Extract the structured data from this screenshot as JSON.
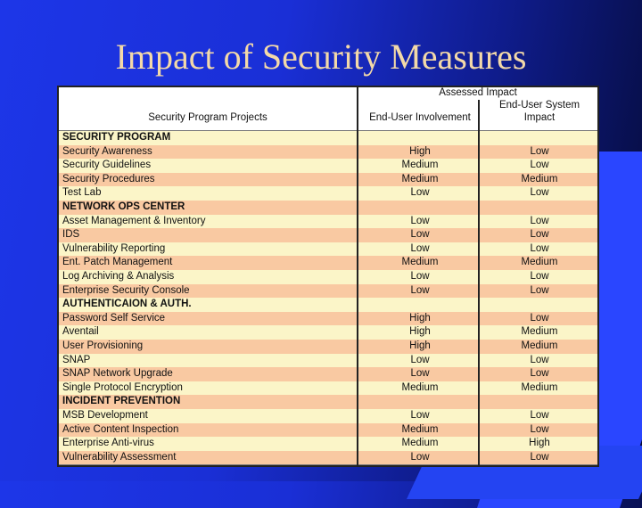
{
  "title": "Impact of Security Measures",
  "table": {
    "headers": {
      "project": "Security Program Projects",
      "assessed": "Assessed Impact",
      "involvement": "End-User Involvement",
      "system_line1": "End-User System",
      "system_line2": "Impact"
    },
    "rows": [
      {
        "project": "SECURITY PROGRAM",
        "involvement": "",
        "system": "",
        "section": true
      },
      {
        "project": "Security Awareness",
        "involvement": "High",
        "system": "Low"
      },
      {
        "project": "Security Guidelines",
        "involvement": "Medium",
        "system": "Low"
      },
      {
        "project": "Security Procedures",
        "involvement": "Medium",
        "system": "Medium"
      },
      {
        "project": "Test Lab",
        "involvement": "Low",
        "system": "Low"
      },
      {
        "project": "NETWORK OPS CENTER",
        "involvement": "",
        "system": "",
        "section": true
      },
      {
        "project": "Asset Management & Inventory",
        "involvement": "Low",
        "system": "Low"
      },
      {
        "project": "IDS",
        "involvement": "Low",
        "system": "Low"
      },
      {
        "project": "Vulnerability Reporting",
        "involvement": "Low",
        "system": "Low"
      },
      {
        "project": "Ent. Patch Management",
        "involvement": "Medium",
        "system": "Medium"
      },
      {
        "project": "Log Archiving & Analysis",
        "involvement": "Low",
        "system": "Low"
      },
      {
        "project": "Enterprise Security Console",
        "involvement": "Low",
        "system": "Low"
      },
      {
        "project": "AUTHENTICAION & AUTH.",
        "involvement": "",
        "system": "",
        "section": true
      },
      {
        "project": "Password Self Service",
        "involvement": "High",
        "system": "Low"
      },
      {
        "project": "Aventail",
        "involvement": "High",
        "system": "Medium"
      },
      {
        "project": "User Provisioning",
        "involvement": "High",
        "system": "Medium"
      },
      {
        "project": "SNAP",
        "involvement": "Low",
        "system": "Low"
      },
      {
        "project": "SNAP Network Upgrade",
        "involvement": "Low",
        "system": "Low"
      },
      {
        "project": "Single Protocol Encryption",
        "involvement": "Medium",
        "system": "Medium"
      },
      {
        "project": "INCIDENT PREVENTION",
        "involvement": "",
        "system": "",
        "section": true
      },
      {
        "project": "MSB Development",
        "involvement": "Low",
        "system": "Low"
      },
      {
        "project": "Active Content Inspection",
        "involvement": "Medium",
        "system": "Low"
      },
      {
        "project": "Enterprise Anti-virus",
        "involvement": "Medium",
        "system": "High"
      },
      {
        "project": "Vulnerability Assessment",
        "involvement": "Low",
        "system": "Low"
      }
    ]
  }
}
